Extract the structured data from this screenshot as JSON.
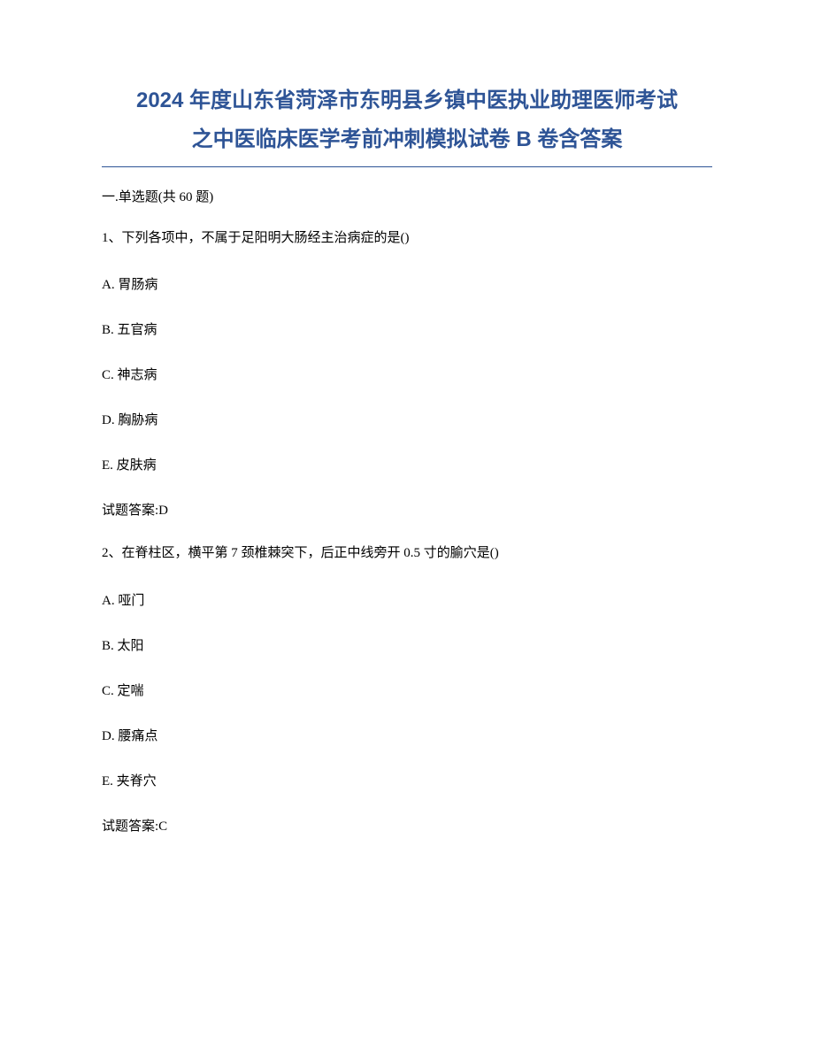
{
  "title": {
    "line1": "2024 年度山东省菏泽市东明县乡镇中医执业助理医师考试",
    "line2": "之中医临床医学考前冲刺模拟试卷 B 卷含答案",
    "color": "#2e5496",
    "fontsize_pt": 18
  },
  "divider_color": "#2e5496",
  "section_header": "一.单选题(共 60 题)",
  "body_color": "#000000",
  "body_fontsize_pt": 11,
  "questions": [
    {
      "number": "1",
      "stem": "1、下列各项中，不属于足阳明大肠经主治病症的是()",
      "options": {
        "A": "A. 胃肠病",
        "B": "B. 五官病",
        "C": "C. 神志病",
        "D": "D. 胸胁病",
        "E": "E. 皮肤病"
      },
      "answer_label": "试题答案:D"
    },
    {
      "number": "2",
      "stem": "2、在脊柱区，横平第 7 颈椎棘突下，后正中线旁开 0.5 寸的腧穴是()",
      "options": {
        "A": "A. 哑门",
        "B": "B. 太阳",
        "C": "C. 定喘",
        "D": "D. 腰痛点",
        "E": "E. 夹脊穴"
      },
      "answer_label": "试题答案:C"
    }
  ]
}
